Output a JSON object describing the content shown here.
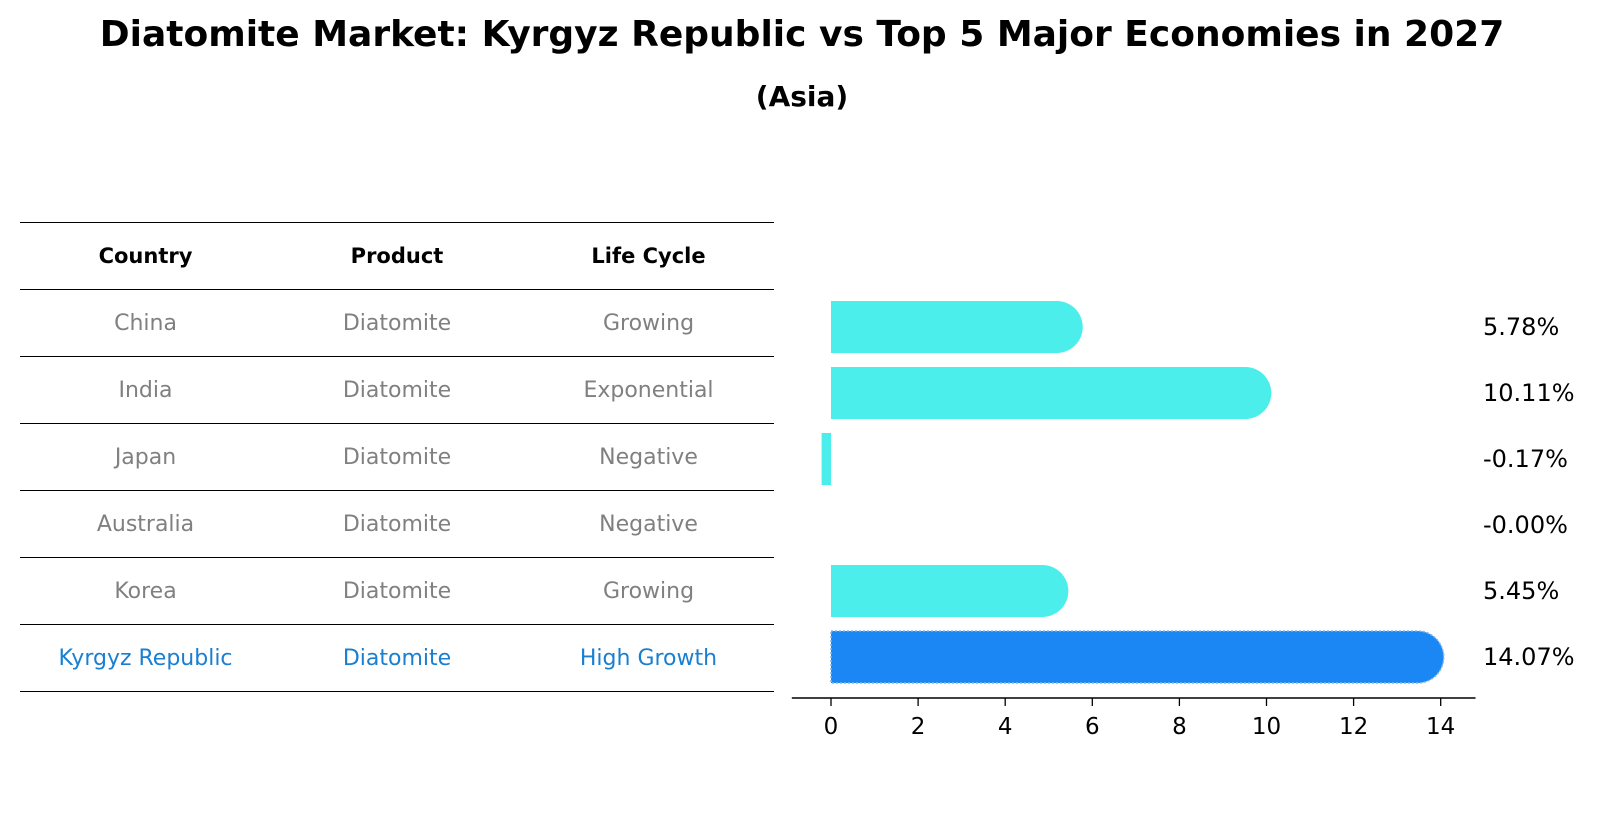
{
  "title": "Diatomite Market: Kyrgyz Republic vs Top 5 Major Economies in 2027",
  "subtitle": "(Asia)",
  "table": {
    "headers": [
      "Country",
      "Product",
      "Life Cycle"
    ],
    "rows": [
      {
        "country": "China",
        "product": "Diatomite",
        "life_cycle": "Growing"
      },
      {
        "country": "India",
        "product": "Diatomite",
        "life_cycle": "Exponential"
      },
      {
        "country": "Japan",
        "product": "Diatomite",
        "life_cycle": "Negative"
      },
      {
        "country": "Australia",
        "product": "Diatomite",
        "life_cycle": "Negative"
      },
      {
        "country": "Korea",
        "product": "Diatomite",
        "life_cycle": "Growing"
      },
      {
        "country": "Kyrgyz Republic",
        "product": "Diatomite",
        "life_cycle": "High Growth"
      }
    ],
    "highlight_color": "#1a7fd1",
    "text_color": "#808080"
  },
  "chart_data": {
    "type": "bar",
    "orientation": "horizontal",
    "categories": [
      "China",
      "India",
      "Japan",
      "Australia",
      "Korea",
      "Kyrgyz Republic"
    ],
    "values": [
      5.78,
      10.11,
      -0.17,
      -0.0,
      5.45,
      14.07
    ],
    "value_labels": [
      "5.78%",
      "10.11%",
      "-0.17%",
      "-0.00%",
      "5.45%",
      "14.07%"
    ],
    "xlim": [
      -0.9,
      14.8
    ],
    "xticks": [
      0,
      2,
      4,
      6,
      8,
      10,
      12,
      14
    ],
    "xtick_labels": [
      "0",
      "2",
      "4",
      "6",
      "8",
      "10",
      "12",
      "14"
    ],
    "colors": {
      "bar": "#4beeea",
      "highlight_bar": "#1a87f4"
    },
    "highlight_index": 5,
    "grid": false,
    "legend": "none"
  }
}
